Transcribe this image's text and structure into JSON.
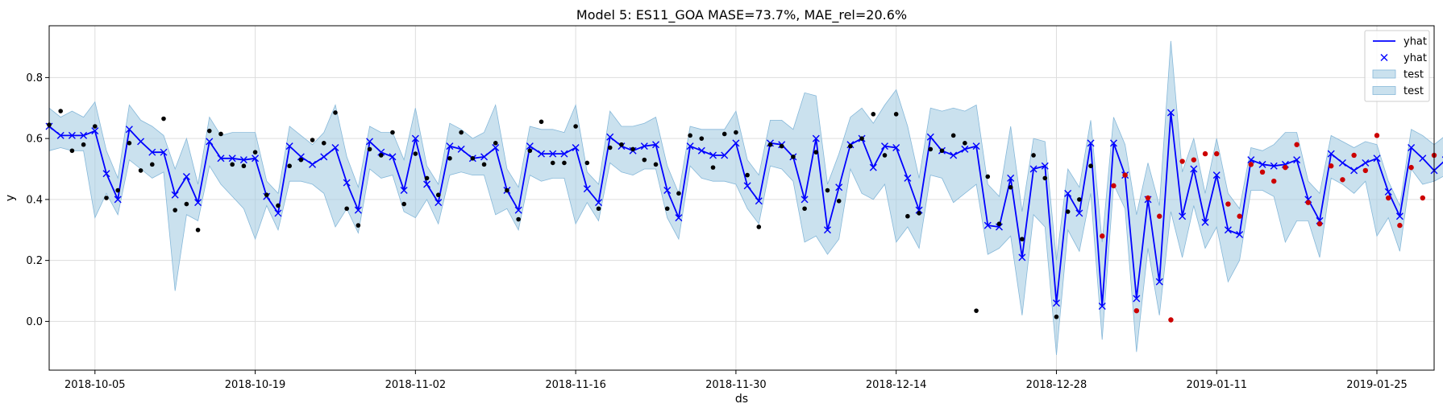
{
  "chart_data": {
    "type": "line",
    "title": "Model 5: ES11_GOA MASE=73.7%, MAE_rel=20.6%",
    "xlabel": "ds",
    "ylabel": "y",
    "x_start": "2018-10-01",
    "x_end": "2019-01-30",
    "ylim": [
      -0.16,
      0.97
    ],
    "xtick_labels": [
      "2018-10-05",
      "2018-10-19",
      "2018-11-02",
      "2018-11-16",
      "2018-11-30",
      "2018-12-14",
      "2018-12-28",
      "2019-01-11",
      "2019-01-25"
    ],
    "ytick_labels": [
      "0.0",
      "0.2",
      "0.4",
      "0.6",
      "0.8"
    ],
    "grid": true,
    "legend_position": "top-right",
    "legend": [
      {
        "label": "yhat",
        "kind": "line"
      },
      {
        "label": "yhat",
        "kind": "marker"
      },
      {
        "label": "test",
        "kind": "band"
      },
      {
        "label": "test",
        "kind": "band"
      }
    ],
    "colors": {
      "yhat": "#0000ff",
      "band": "#a6cde3",
      "band_edge": "#86b8d9",
      "actual": "#000000",
      "test_actual": "#cc0000",
      "grid": "#dddddd"
    },
    "series": [
      {
        "name": "yhat",
        "x_first": "2018-10-01",
        "step_days": 1,
        "values": [
          0.64,
          0.61,
          0.61,
          0.61,
          0.625,
          0.485,
          0.4,
          0.63,
          0.59,
          0.555,
          0.555,
          0.415,
          0.475,
          0.39,
          0.59,
          0.535,
          0.535,
          0.53,
          0.535,
          0.41,
          0.355,
          0.575,
          0.54,
          0.515,
          0.54,
          0.57,
          0.455,
          0.365,
          0.59,
          0.555,
          0.54,
          0.43,
          0.6,
          0.45,
          0.39,
          0.575,
          0.565,
          0.535,
          0.54,
          0.57,
          0.43,
          0.365,
          0.575,
          0.55,
          0.55,
          0.55,
          0.57,
          0.435,
          0.39,
          0.605,
          0.575,
          0.56,
          0.575,
          0.58,
          0.43,
          0.34,
          0.575,
          0.56,
          0.545,
          0.545,
          0.585,
          0.445,
          0.395,
          0.585,
          0.58,
          0.54,
          0.4,
          0.6,
          0.3,
          0.44,
          0.58,
          0.6,
          0.505,
          0.575,
          0.57,
          0.47,
          0.365,
          0.605,
          0.56,
          0.545,
          0.565,
          0.575,
          0.315,
          0.31,
          0.47,
          0.21,
          0.5,
          0.51,
          0.06,
          0.42,
          0.355,
          0.585,
          0.05,
          0.585,
          0.48,
          0.075,
          0.4,
          0.13,
          0.685,
          0.345,
          0.5,
          0.325,
          0.48,
          0.3,
          0.285,
          0.53,
          0.515,
          0.51,
          0.515,
          0.53,
          0.4,
          0.33,
          0.55,
          0.52,
          0.495,
          0.52,
          0.535,
          0.425,
          0.345,
          0.57,
          0.535,
          0.495,
          0.53
        ]
      },
      {
        "name": "test",
        "kind": "band_lower",
        "x_first": "2018-10-01",
        "step_days": 1,
        "values": [
          0.56,
          0.57,
          0.56,
          0.56,
          0.34,
          0.42,
          0.35,
          0.53,
          0.5,
          0.47,
          0.49,
          0.1,
          0.35,
          0.33,
          0.51,
          0.45,
          0.41,
          0.37,
          0.27,
          0.38,
          0.3,
          0.46,
          0.46,
          0.45,
          0.42,
          0.31,
          0.37,
          0.29,
          0.5,
          0.47,
          0.48,
          0.36,
          0.34,
          0.4,
          0.32,
          0.48,
          0.49,
          0.48,
          0.48,
          0.35,
          0.37,
          0.3,
          0.48,
          0.46,
          0.47,
          0.47,
          0.32,
          0.39,
          0.33,
          0.52,
          0.49,
          0.48,
          0.5,
          0.5,
          0.34,
          0.27,
          0.51,
          0.47,
          0.46,
          0.46,
          0.45,
          0.37,
          0.32,
          0.51,
          0.5,
          0.46,
          0.26,
          0.28,
          0.22,
          0.27,
          0.5,
          0.42,
          0.4,
          0.45,
          0.26,
          0.31,
          0.24,
          0.48,
          0.47,
          0.39,
          0.42,
          0.45,
          0.22,
          0.24,
          0.28,
          0.02,
          0.35,
          0.31,
          -0.11,
          0.3,
          0.23,
          0.42,
          -0.06,
          0.45,
          0.37,
          -0.1,
          0.24,
          0.02,
          0.36,
          0.21,
          0.38,
          0.24,
          0.31,
          0.13,
          0.2,
          0.43,
          0.43,
          0.41,
          0.26,
          0.33,
          0.33,
          0.21,
          0.47,
          0.45,
          0.42,
          0.46,
          0.28,
          0.34,
          0.23,
          0.5,
          0.45,
          0.46,
          0.48
        ]
      },
      {
        "name": "test",
        "kind": "band_upper",
        "x_first": "2018-10-01",
        "step_days": 1,
        "values": [
          0.7,
          0.67,
          0.69,
          0.67,
          0.72,
          0.56,
          0.47,
          0.71,
          0.66,
          0.64,
          0.61,
          0.5,
          0.6,
          0.45,
          0.67,
          0.61,
          0.62,
          0.62,
          0.62,
          0.46,
          0.42,
          0.64,
          0.61,
          0.58,
          0.62,
          0.71,
          0.54,
          0.44,
          0.64,
          0.62,
          0.62,
          0.53,
          0.7,
          0.51,
          0.45,
          0.65,
          0.63,
          0.6,
          0.62,
          0.71,
          0.5,
          0.44,
          0.64,
          0.63,
          0.63,
          0.62,
          0.71,
          0.49,
          0.45,
          0.69,
          0.64,
          0.64,
          0.65,
          0.67,
          0.51,
          0.42,
          0.64,
          0.63,
          0.63,
          0.63,
          0.69,
          0.53,
          0.48,
          0.66,
          0.66,
          0.63,
          0.75,
          0.74,
          0.45,
          0.55,
          0.67,
          0.7,
          0.65,
          0.71,
          0.76,
          0.64,
          0.47,
          0.7,
          0.69,
          0.7,
          0.69,
          0.71,
          0.45,
          0.41,
          0.64,
          0.36,
          0.6,
          0.59,
          0.2,
          0.5,
          0.44,
          0.66,
          0.26,
          0.67,
          0.58,
          0.35,
          0.52,
          0.38,
          0.92,
          0.49,
          0.6,
          0.42,
          0.6,
          0.42,
          0.37,
          0.57,
          0.56,
          0.58,
          0.62,
          0.62,
          0.46,
          0.42,
          0.61,
          0.59,
          0.57,
          0.59,
          0.58,
          0.46,
          0.38,
          0.63,
          0.61,
          0.58,
          0.61
        ]
      },
      {
        "name": "actual",
        "kind": "points",
        "color": "black",
        "x_first": "2018-10-01",
        "step_days": 1,
        "values": [
          0.645,
          0.69,
          0.56,
          0.58,
          0.64,
          0.405,
          0.43,
          0.585,
          0.495,
          0.515,
          0.665,
          0.365,
          0.385,
          0.3,
          0.625,
          0.615,
          0.515,
          0.51,
          0.555,
          0.415,
          0.38,
          0.51,
          0.53,
          0.595,
          0.585,
          0.685,
          0.37,
          0.315,
          0.565,
          0.545,
          0.62,
          0.385,
          0.55,
          0.47,
          0.415,
          0.535,
          0.62,
          0.535,
          0.515,
          0.585,
          0.43,
          0.335,
          0.56,
          0.655,
          0.52,
          0.52,
          0.64,
          0.52,
          0.37,
          0.57,
          0.58,
          0.565,
          0.53,
          0.515,
          0.37,
          0.42,
          0.61,
          0.6,
          0.505,
          0.615,
          0.62,
          0.48,
          0.31,
          0.58,
          0.575,
          0.54,
          0.37,
          0.555,
          0.43,
          0.395,
          0.575,
          0.6,
          0.68,
          0.545,
          0.68,
          0.345,
          0.355,
          0.565,
          0.56,
          0.61,
          0.585,
          0.035,
          0.475,
          0.32,
          0.44,
          0.27,
          0.545,
          0.47,
          0.015,
          0.36,
          0.4,
          0.51
        ]
      },
      {
        "name": "test actual",
        "kind": "points",
        "color": "red",
        "x_first": "2019-01-01",
        "step_days": 1,
        "values": [
          0.28,
          0.445,
          0.48,
          0.035,
          0.405,
          0.345,
          0.005,
          0.525,
          0.53,
          0.55,
          0.55,
          0.385,
          0.345,
          0.515,
          0.49,
          0.46,
          0.505,
          0.58,
          0.39,
          0.32,
          0.51,
          0.465,
          0.545,
          0.495,
          0.61,
          0.405,
          0.315,
          0.505,
          0.405,
          0.545,
          0.625
        ]
      }
    ]
  }
}
